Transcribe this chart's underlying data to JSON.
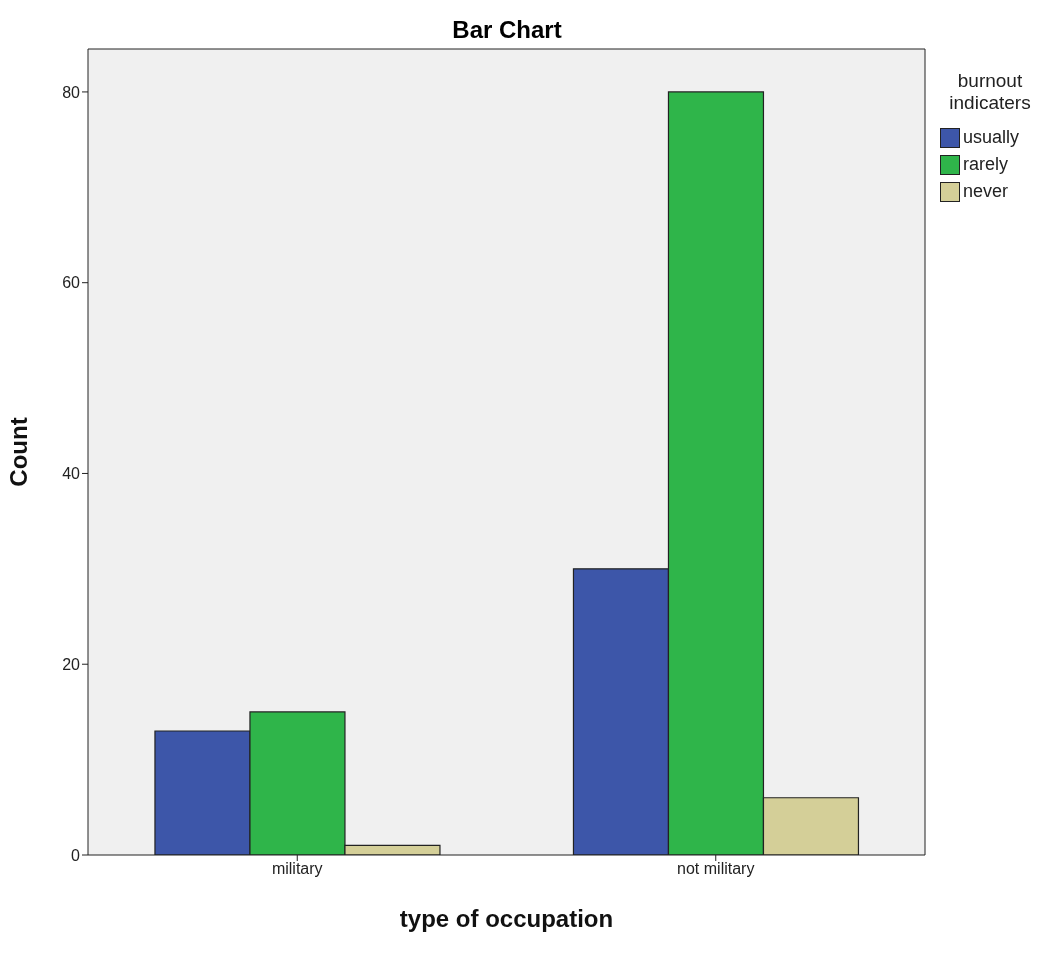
{
  "chart_data": {
    "type": "bar",
    "title": "Bar Chart",
    "xlabel": "type of occupation",
    "ylabel": "Count",
    "legend_title": "burnout indicaters",
    "categories": [
      "military",
      "not military"
    ],
    "series": [
      {
        "name": "usually",
        "color": "#3d56a9",
        "values": [
          13,
          30
        ]
      },
      {
        "name": "rarely",
        "color": "#2fb54a",
        "values": [
          15,
          80
        ]
      },
      {
        "name": "never",
        "color": "#d4cf98",
        "values": [
          1,
          6
        ]
      }
    ],
    "ylim": [
      0,
      84.5
    ],
    "yticks": [
      0,
      20,
      40,
      60,
      80
    ],
    "grid": false,
    "legend": "top right"
  }
}
